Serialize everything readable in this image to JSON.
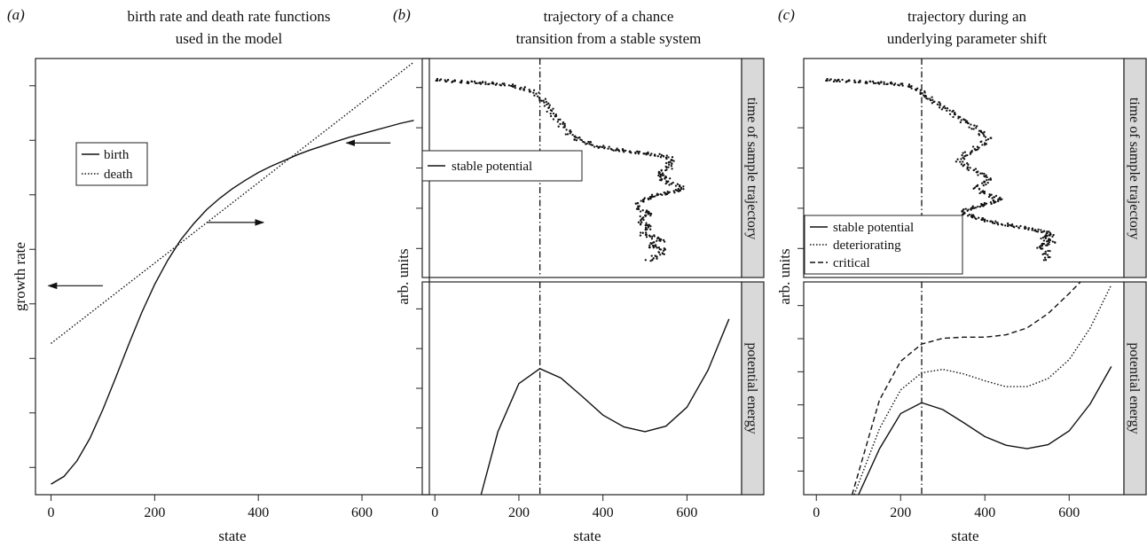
{
  "chart_data": [
    {
      "type": "line",
      "panel_label": "(a)",
      "title_lines": [
        "birth rate and death rate functions",
        "used in the model"
      ],
      "xlabel": "state",
      "ylabel": "growth rate",
      "xlim": [
        -30,
        730
      ],
      "ylim": [
        -0.15,
        6.05
      ],
      "x_ticks": [
        0,
        200,
        400,
        600
      ],
      "y_tick_count": 8,
      "legend": {
        "position": "upper-left",
        "entries": [
          "birth",
          "death"
        ]
      },
      "series": [
        {
          "name": "birth",
          "style": "solid",
          "x": [
            0,
            25,
            50,
            75,
            100,
            125,
            150,
            175,
            200,
            225,
            250,
            275,
            300,
            325,
            350,
            375,
            400,
            425,
            450,
            475,
            500,
            525,
            550,
            575,
            600,
            625,
            650,
            675,
            700
          ],
          "y": [
            0.0,
            0.11,
            0.33,
            0.65,
            1.06,
            1.52,
            1.99,
            2.44,
            2.84,
            3.18,
            3.47,
            3.7,
            3.9,
            4.06,
            4.2,
            4.32,
            4.43,
            4.52,
            4.6,
            4.68,
            4.75,
            4.81,
            4.87,
            4.93,
            4.98,
            5.03,
            5.08,
            5.13,
            5.17
          ]
        },
        {
          "name": "death",
          "style": "dotted",
          "x": [
            0,
            700
          ],
          "y": [
            2.0,
            6.0
          ]
        }
      ],
      "annotations": [
        {
          "type": "arrow",
          "from": [
            100,
            2.82
          ],
          "to": [
            -5,
            2.82
          ]
        },
        {
          "type": "arrow",
          "from": [
            300,
            3.72
          ],
          "to": [
            410,
            3.72
          ]
        },
        {
          "type": "arrow",
          "from": [
            655,
            4.85
          ],
          "to": [
            570,
            4.85
          ]
        }
      ]
    },
    {
      "type": "line",
      "panel_label": "(b)",
      "title_lines": [
        "trajectory of a chance",
        "transition from a stable system"
      ],
      "xlabel": "state",
      "ylabel": "arb. units",
      "xlim": [
        -30,
        730
      ],
      "x_ticks": [
        0,
        200,
        400,
        600
      ],
      "vline_x": 250,
      "facets": [
        {
          "strip": "time of sample trajectory",
          "ylim": [
            0,
            1
          ],
          "y_tick_count": 5,
          "legend": {
            "entries": [
              "stable potential"
            ]
          },
          "trajectory": {
            "style": "points",
            "x": [
              0,
              30,
              60,
              100,
              140,
              180,
              215,
              240,
              250,
              265,
              270,
              275,
              280,
              288,
              300,
              308,
              318,
              330,
              345,
              360,
              380,
              405,
              430,
              460,
              500,
              530,
              555,
              565,
              555,
              560,
              545,
              530,
              545,
              550,
              540,
              560,
              580,
              590,
              570,
              555,
              530,
              515,
              505,
              495,
              485,
              480,
              490,
              505,
              515,
              500,
              490,
              490,
              505,
              510,
              500,
              495,
              520,
              540,
              525,
              510,
              530,
              545,
              540,
              530,
              520,
              510
            ],
            "y": [
              0.0,
              0.005,
              0.01,
              0.015,
              0.02,
              0.03,
              0.05,
              0.07,
              0.1,
              0.12,
              0.14,
              0.16,
              0.18,
              0.2,
              0.23,
              0.25,
              0.28,
              0.3,
              0.32,
              0.33,
              0.35,
              0.36,
              0.37,
              0.38,
              0.39,
              0.4,
              0.41,
              0.43,
              0.44,
              0.46,
              0.48,
              0.5,
              0.51,
              0.52,
              0.53,
              0.55,
              0.56,
              0.58,
              0.59,
              0.6,
              0.61,
              0.62,
              0.63,
              0.64,
              0.65,
              0.67,
              0.69,
              0.7,
              0.71,
              0.72,
              0.74,
              0.76,
              0.77,
              0.78,
              0.8,
              0.82,
              0.83,
              0.85,
              0.86,
              0.88,
              0.89,
              0.9,
              0.92,
              0.93,
              0.95,
              0.96
            ]
          }
        },
        {
          "strip": "potential energy",
          "ylim": [
            -1.2,
            1.5
          ],
          "y_tick_count": 5,
          "series": [
            {
              "name": "stable potential",
              "style": "solid",
              "x": [
                110,
                150,
                200,
                250,
                300,
                350,
                400,
                450,
                500,
                550,
                600,
                650,
                700
              ],
              "y": [
                -1.2,
                -0.4,
                0.21,
                0.4,
                0.28,
                0.05,
                -0.19,
                -0.34,
                -0.4,
                -0.33,
                -0.09,
                0.38,
                1.03
              ]
            }
          ]
        }
      ]
    },
    {
      "type": "line",
      "panel_label": "(c)",
      "title_lines": [
        "trajectory during an",
        "underlying parameter shift"
      ],
      "xlabel": "state",
      "ylabel": "arb. units",
      "xlim": [
        -30,
        730
      ],
      "x_ticks": [
        0,
        200,
        400,
        600
      ],
      "vline_x": 250,
      "facets": [
        {
          "strip": "time of sample trajectory",
          "ylim": [
            0,
            1
          ],
          "y_tick_count": 5,
          "legend": {
            "entries": [
              "stable potential",
              "deteriorating",
              "critical"
            ]
          },
          "trajectory": {
            "style": "points",
            "x": [
              20,
              60,
              100,
              140,
              180,
              215,
              240,
              250,
              262,
              275,
              290,
              305,
              320,
              330,
              345,
              360,
              375,
              385,
              395,
              405,
              400,
              390,
              375,
              360,
              345,
              340,
              350,
              365,
              385,
              400,
              410,
              395,
              380,
              390,
              400,
              420,
              435,
              430,
              415,
              400,
              385,
              370,
              355,
              345,
              350,
              365,
              380,
              395,
              410,
              430,
              455,
              480,
              510,
              530,
              550,
              560,
              545,
              540,
              555,
              560,
              545,
              530,
              540,
              550,
              545,
              540
            ],
            "y": [
              0.0,
              0.005,
              0.01,
              0.015,
              0.02,
              0.03,
              0.05,
              0.07,
              0.09,
              0.11,
              0.13,
              0.15,
              0.17,
              0.19,
              0.21,
              0.23,
              0.25,
              0.27,
              0.29,
              0.31,
              0.33,
              0.35,
              0.37,
              0.39,
              0.41,
              0.43,
              0.45,
              0.47,
              0.49,
              0.51,
              0.53,
              0.55,
              0.57,
              0.59,
              0.6,
              0.62,
              0.63,
              0.64,
              0.65,
              0.66,
              0.67,
              0.68,
              0.69,
              0.7,
              0.71,
              0.72,
              0.73,
              0.74,
              0.75,
              0.76,
              0.77,
              0.78,
              0.79,
              0.8,
              0.81,
              0.82,
              0.83,
              0.84,
              0.85,
              0.86,
              0.87,
              0.88,
              0.9,
              0.92,
              0.94,
              0.96
            ]
          }
        },
        {
          "strip": "potential energy",
          "ylim": [
            -1.2,
            2.5
          ],
          "y_tick_count": 6,
          "series": [
            {
              "name": "stable potential",
              "style": "solid",
              "x": [
                100,
                150,
                200,
                250,
                300,
                350,
                400,
                450,
                500,
                550,
                600,
                650,
                700
              ],
              "y": [
                -1.2,
                -0.4,
                0.21,
                0.4,
                0.28,
                0.05,
                -0.19,
                -0.34,
                -0.4,
                -0.33,
                -0.09,
                0.38,
                1.03
              ]
            },
            {
              "name": "deteriorating",
              "style": "dotted",
              "x": [
                90,
                150,
                200,
                250,
                300,
                350,
                400,
                450,
                500,
                550,
                600,
                650,
                700
              ],
              "y": [
                -1.2,
                -0.05,
                0.62,
                0.92,
                0.98,
                0.9,
                0.78,
                0.68,
                0.68,
                0.82,
                1.15,
                1.7,
                2.45
              ]
            },
            {
              "name": "critical",
              "style": "dashed",
              "x": [
                85,
                150,
                200,
                250,
                300,
                350,
                400,
                450,
                500,
                550,
                600,
                640
              ],
              "y": [
                -1.2,
                0.45,
                1.12,
                1.42,
                1.52,
                1.54,
                1.54,
                1.58,
                1.7,
                1.95,
                2.3,
                2.6
              ]
            }
          ]
        }
      ]
    }
  ]
}
